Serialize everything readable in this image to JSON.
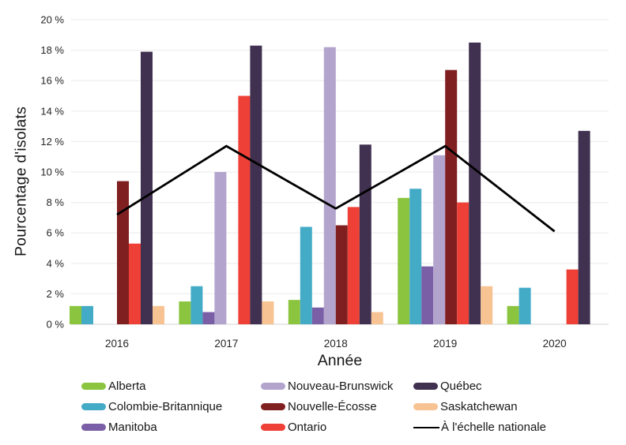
{
  "chart_data": {
    "type": "bar",
    "title": "",
    "xlabel": "Année",
    "ylabel": "Pourcentage d'isolats",
    "categories": [
      "2016",
      "2017",
      "2018",
      "2019",
      "2020"
    ],
    "y_axis": {
      "min": 0,
      "max": 20,
      "step": 2,
      "tick_suffix": " %",
      "tick_labels": [
        "0 %",
        "2 %",
        "4 %",
        "6 %",
        "8 %",
        "10 %",
        "12 %",
        "14 %",
        "16 %",
        "18 %",
        "20 %"
      ]
    },
    "grid": "horizontal",
    "series": [
      {
        "name": "Alberta",
        "color": "#8BC53F",
        "values": [
          1.2,
          1.5,
          1.6,
          8.3,
          1.2
        ]
      },
      {
        "name": "Colombie-Britannique",
        "color": "#44ABC7",
        "values": [
          1.2,
          2.5,
          6.4,
          8.9,
          2.4
        ]
      },
      {
        "name": "Manitoba",
        "color": "#7A5FA6",
        "values": [
          0,
          0.8,
          1.1,
          3.8,
          0
        ]
      },
      {
        "name": "Nouveau-Brunswick",
        "color": "#B3A4CE",
        "values": [
          0,
          10.0,
          18.2,
          11.1,
          0
        ]
      },
      {
        "name": "Nouvelle-Écosse",
        "color": "#801F20",
        "values": [
          9.4,
          0,
          6.5,
          16.7,
          0
        ]
      },
      {
        "name": "Ontario",
        "color": "#EE4036",
        "values": [
          5.3,
          15.0,
          7.7,
          8.0,
          3.6
        ]
      },
      {
        "name": "Québec",
        "color": "#413150",
        "values": [
          17.9,
          18.3,
          11.8,
          18.5,
          12.7
        ]
      },
      {
        "name": "Saskatchewan",
        "color": "#F8C392",
        "values": [
          1.2,
          1.5,
          0.8,
          2.5,
          0
        ]
      }
    ],
    "line_series": {
      "name": "À l'échelle nationale",
      "color": "#000000",
      "values": [
        7.2,
        11.7,
        7.6,
        11.7,
        6.1
      ]
    },
    "legend": {
      "position": "bottom",
      "columns": [
        [
          "Alberta",
          "Colombie-Britannique",
          "Manitoba"
        ],
        [
          "Nouveau-Brunswick",
          "Nouvelle-Écosse",
          "Ontario"
        ],
        [
          "Québec",
          "Saskatchewan",
          "À l'échelle nationale"
        ]
      ]
    }
  }
}
